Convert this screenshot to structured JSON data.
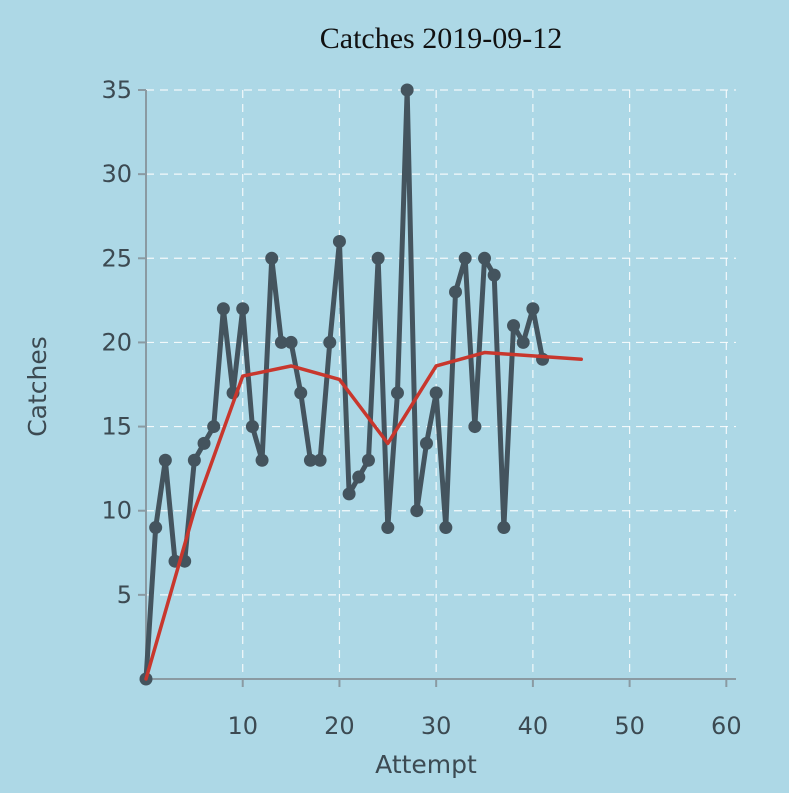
{
  "chart_data": {
    "type": "line",
    "title": "Catches 2019-09-12",
    "xlabel": "Attempt",
    "ylabel": "Catches",
    "xlim": [
      0,
      61
    ],
    "ylim": [
      0,
      35
    ],
    "xticks": [
      10,
      20,
      30,
      40,
      50,
      60
    ],
    "yticks": [
      5,
      10,
      15,
      20,
      25,
      30,
      35
    ],
    "grid": true,
    "series": [
      {
        "values": [
          [
            0,
            0
          ],
          [
            1,
            9
          ],
          [
            2,
            13
          ],
          [
            3,
            7
          ],
          [
            4,
            7
          ],
          [
            5,
            13
          ],
          [
            6,
            14
          ],
          [
            7,
            15
          ],
          [
            8,
            22
          ],
          [
            9,
            17
          ],
          [
            10,
            22
          ],
          [
            11,
            15
          ],
          [
            12,
            13
          ],
          [
            13,
            25
          ],
          [
            14,
            20
          ],
          [
            15,
            20
          ],
          [
            16,
            17
          ],
          [
            17,
            13
          ],
          [
            18,
            13
          ],
          [
            19,
            20
          ],
          [
            20,
            26
          ],
          [
            21,
            11
          ],
          [
            22,
            12
          ],
          [
            23,
            13
          ],
          [
            24,
            25
          ],
          [
            25,
            9
          ],
          [
            26,
            17
          ],
          [
            27,
            35
          ],
          [
            28,
            10
          ],
          [
            29,
            14
          ],
          [
            30,
            17
          ],
          [
            31,
            9
          ],
          [
            32,
            23
          ],
          [
            33,
            25
          ],
          [
            34,
            15
          ],
          [
            35,
            25
          ],
          [
            36,
            24
          ],
          [
            37,
            9
          ],
          [
            38,
            21
          ],
          [
            39,
            20
          ],
          [
            40,
            22
          ],
          [
            41,
            19
          ]
        ],
        "color": "#44545e",
        "markers": true
      },
      {
        "values": [
          [
            0,
            0
          ],
          [
            5,
            10
          ],
          [
            10,
            18
          ],
          [
            15,
            18.6
          ],
          [
            20,
            17.8
          ],
          [
            25,
            14
          ],
          [
            30,
            18.6
          ],
          [
            35,
            19.4
          ],
          [
            40,
            19.2
          ],
          [
            45,
            19
          ]
        ],
        "color": "#c8372d",
        "markers": false
      }
    ]
  }
}
